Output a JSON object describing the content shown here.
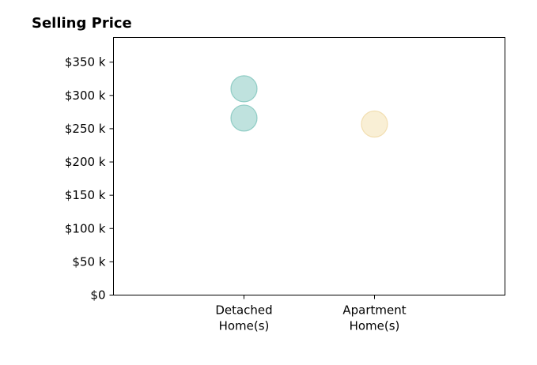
{
  "chart_data": {
    "type": "scatter",
    "title": "Selling Price",
    "xlabel": "",
    "ylabel": "",
    "categories": [
      [
        "Detached",
        "Home(s)"
      ],
      [
        "Apartment",
        "Home(s)"
      ]
    ],
    "ylim": [
      0,
      387
    ],
    "yticks": [
      0,
      50,
      100,
      150,
      200,
      250,
      300,
      350
    ],
    "ytick_labels": [
      "$0",
      "$50 k",
      "$100 k",
      "$150 k",
      "$200 k",
      "$250 k",
      "$300 k",
      "$350 k"
    ],
    "grid": false,
    "legend": "none",
    "series": [
      {
        "category_index": 0,
        "color": "#80c6bd",
        "edge_color": "#6fbdb3",
        "opacity": 0.5,
        "values": [
          310,
          266
        ]
      },
      {
        "category_index": 1,
        "color": "#f3dfac",
        "edge_color": "#eed49a",
        "opacity": 0.5,
        "values": [
          257
        ]
      }
    ]
  }
}
